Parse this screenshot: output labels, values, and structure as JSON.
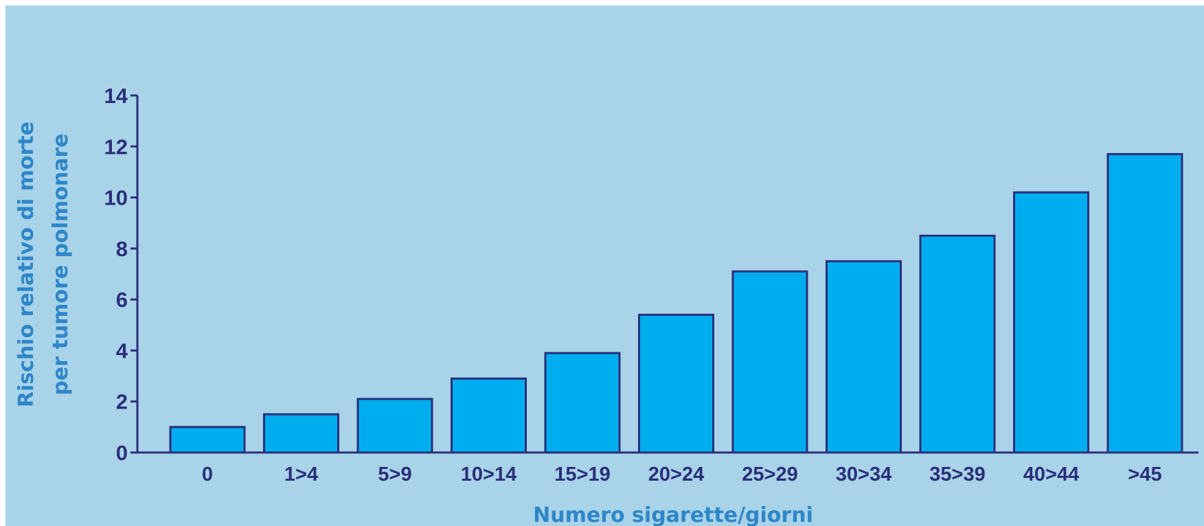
{
  "chart_data": {
    "type": "bar",
    "categories": [
      "0",
      "1>4",
      "5>9",
      "10>14",
      "15>19",
      "20>24",
      "25>29",
      "30>34",
      "35>39",
      "40>44",
      ">45"
    ],
    "values": [
      1.0,
      1.5,
      2.1,
      2.9,
      3.9,
      5.4,
      7.1,
      7.5,
      8.5,
      10.2,
      11.7
    ],
    "xlabel": "Numero sigarette/giorni",
    "ylabel_lines": [
      "Rischio relativo di morte",
      "per tumore polmonare"
    ],
    "yticks": [
      0,
      2,
      4,
      6,
      8,
      10,
      12,
      14
    ],
    "ylim": [
      0,
      14
    ],
    "grid": false,
    "legend": "none",
    "colors": {
      "background": "#a8d3e8",
      "bar_fill": "#00aeef",
      "bar_stroke": "#2b2e7a",
      "axis": "#2b2e7a",
      "tick_text": "#2b2e7a",
      "axis_title": "#2e86c8"
    }
  }
}
